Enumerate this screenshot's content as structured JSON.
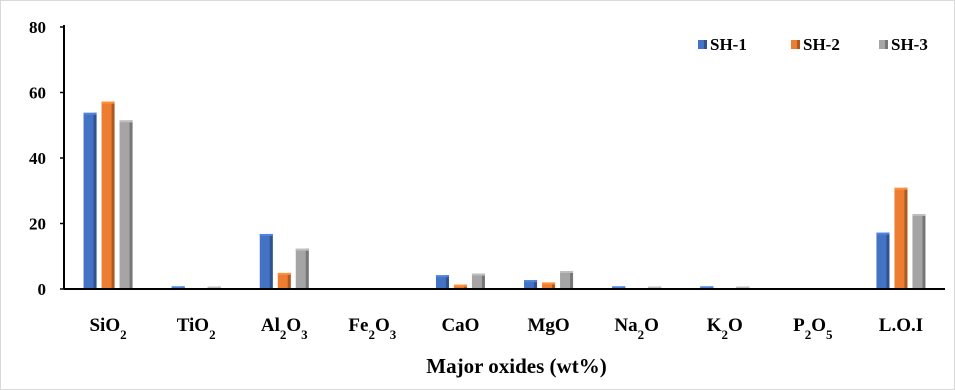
{
  "chart_data": {
    "type": "bar",
    "title": "",
    "xlabel": "Major oxides (wt%)",
    "ylabel": "",
    "ylim": [
      0,
      80
    ],
    "yticks": [
      0,
      20,
      40,
      60,
      80
    ],
    "grid": false,
    "legend_position": "top-right",
    "categories": [
      {
        "base": "SiO",
        "sub": "2",
        "base2": "",
        "sub2": ""
      },
      {
        "base": "TiO",
        "sub": "2",
        "base2": "",
        "sub2": ""
      },
      {
        "base": "Al",
        "sub": "2",
        "base2": "O",
        "sub2": "3"
      },
      {
        "base": "Fe",
        "sub": "2",
        "base2": "O",
        "sub2": "3"
      },
      {
        "base": "CaO",
        "sub": "",
        "base2": "",
        "sub2": ""
      },
      {
        "base": "MgO",
        "sub": "",
        "base2": "",
        "sub2": ""
      },
      {
        "base": "Na",
        "sub": "2",
        "base2": "O",
        "sub2": ""
      },
      {
        "base": "K",
        "sub": "2",
        "base2": "O",
        "sub2": ""
      },
      {
        "base": "P",
        "sub": "2",
        "base2": "O",
        "sub2": "5"
      },
      {
        "base": "L.O.I",
        "sub": "",
        "base2": "",
        "sub2": ""
      }
    ],
    "series": [
      {
        "name": "SH-1",
        "color": "#4472C4",
        "values": [
          53.8,
          0.8,
          16.8,
          0,
          4.2,
          2.7,
          0.8,
          0.8,
          0,
          17.2
        ]
      },
      {
        "name": "SH-2",
        "color": "#ED7D31",
        "values": [
          57.2,
          0,
          4.9,
          0,
          1.3,
          2.0,
          0,
          0,
          0,
          30.9
        ]
      },
      {
        "name": "SH-3",
        "color": "#A5A5A5",
        "values": [
          51.5,
          0.7,
          12.3,
          0,
          4.7,
          5.5,
          0.7,
          0.7,
          0,
          22.9
        ]
      }
    ]
  }
}
